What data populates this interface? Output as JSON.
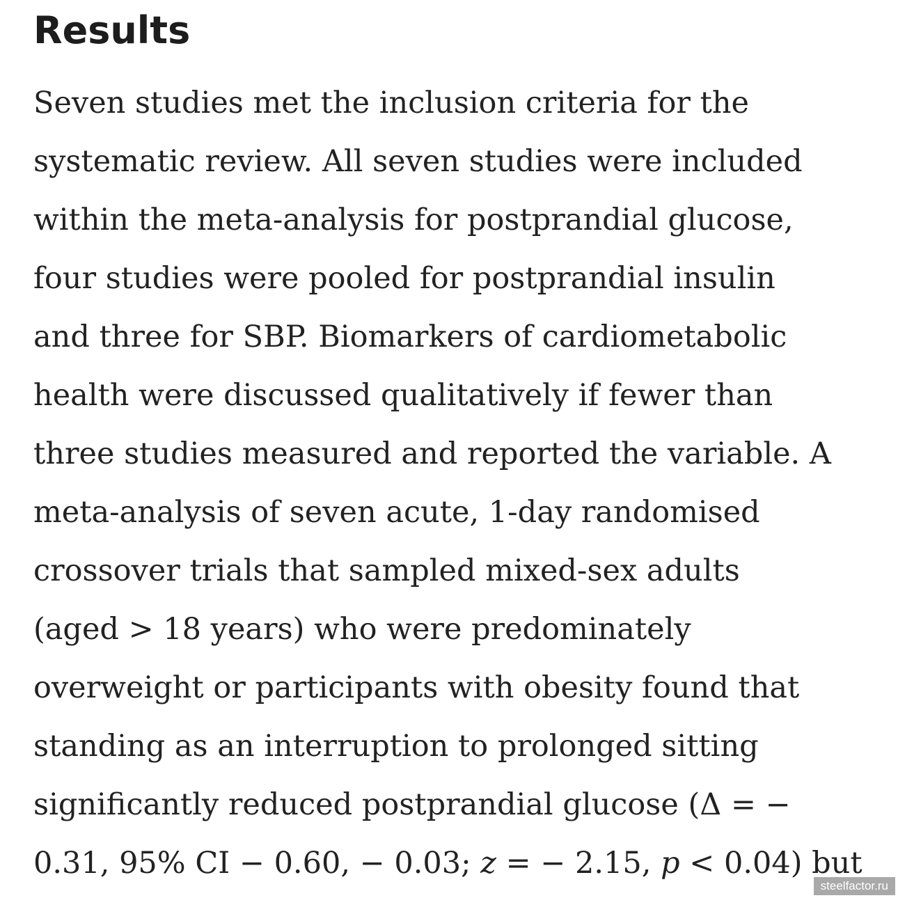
{
  "section": {
    "heading": "Results",
    "lines": [
      "Seven studies met the inclusion criteria for the",
      "systematic review. All seven studies were included",
      "within the meta-analysis for postprandial glucose,",
      "four studies were pooled for postprandial insulin",
      "and three for SBP. Biomarkers of cardiometabolic",
      "health were discussed qualitatively if fewer than",
      "three studies measured and reported the variable. A",
      "meta-analysis of seven acute, 1-day randomised",
      "crossover trials that sampled mixed-sex adults",
      "(aged > 18 years) who were predominately",
      "overweight or participants with obesity found that",
      "standing as an interruption to prolonged sitting",
      "significantly reduced postprandial glucose (Δ = −"
    ],
    "last_line": {
      "part1": "0.31, 95% CI − 0.60, − 0.03; ",
      "z": "z",
      "part2": " = − 2.15, ",
      "p": "p",
      "part3": " < 0.04) but"
    }
  },
  "watermark": "steelfactor.ru"
}
